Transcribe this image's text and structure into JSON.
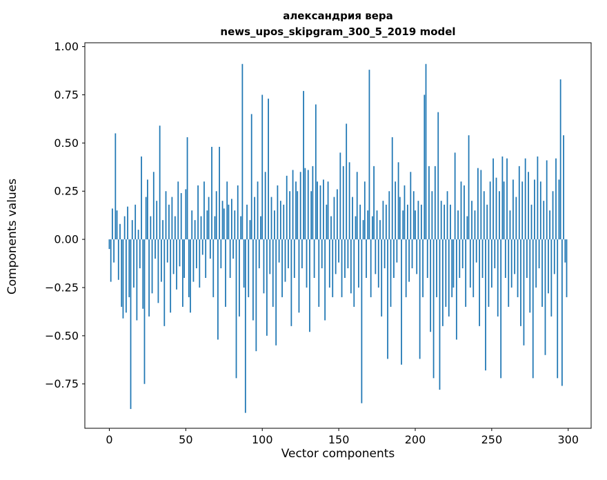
{
  "figure": {
    "background": "#ffffff",
    "title_line1": "александрия вера",
    "title_line2": "news_upos_skipgram_300_5_2019 model"
  },
  "chart_data": {
    "type": "bar",
    "title": "александрия вера\nnews_upos_skipgram_300_5_2019 model",
    "xlabel": "Vector components",
    "ylabel": "Components values",
    "n_components": 300,
    "bar_color": "#1f77b4",
    "bar_width": 0.8,
    "xlim": [
      -16,
      315
    ],
    "ylim": [
      -0.98,
      1.02
    ],
    "x_ticks": [
      0,
      50,
      100,
      150,
      200,
      250,
      300
    ],
    "y_ticks": [
      1.0,
      0.75,
      0.5,
      0.25,
      0.0,
      -0.25,
      -0.5,
      -0.75
    ],
    "grid": false,
    "legend": "none",
    "values": [
      -0.05,
      -0.22,
      0.16,
      -0.12,
      0.55,
      0.15,
      -0.21,
      0.08,
      -0.35,
      -0.41,
      0.12,
      -0.38,
      0.17,
      -0.3,
      -0.88,
      0.1,
      -0.25,
      0.18,
      -0.42,
      0.05,
      -0.15,
      0.43,
      -0.36,
      -0.75,
      0.22,
      0.31,
      -0.4,
      0.12,
      -0.28,
      0.35,
      -0.1,
      0.2,
      -0.33,
      0.59,
      -0.22,
      0.1,
      -0.45,
      0.25,
      -0.12,
      0.18,
      -0.38,
      0.22,
      -0.18,
      0.12,
      -0.26,
      0.3,
      -0.14,
      0.24,
      -0.35,
      -0.2,
      0.26,
      0.53,
      -0.3,
      -0.38,
      0.15,
      -0.22,
      0.1,
      -0.15,
      0.28,
      -0.25,
      0.12,
      -0.08,
      0.3,
      -0.2,
      0.15,
      0.22,
      -0.1,
      0.48,
      -0.3,
      0.12,
      0.25,
      -0.52,
      0.48,
      -0.15,
      0.2,
      0.16,
      -0.35,
      0.3,
      0.18,
      -0.2,
      0.21,
      -0.1,
      0.15,
      -0.72,
      0.28,
      -0.4,
      0.12,
      0.91,
      -0.25,
      -0.9,
      0.18,
      -0.3,
      0.1,
      0.65,
      -0.42,
      0.22,
      -0.58,
      0.3,
      -0.15,
      0.12,
      0.75,
      -0.28,
      0.35,
      -0.5,
      0.73,
      -0.18,
      0.22,
      -0.35,
      0.15,
      -0.55,
      0.28,
      -0.12,
      0.2,
      -0.3,
      0.18,
      -0.22,
      0.33,
      -0.15,
      0.25,
      -0.45,
      0.36,
      -0.2,
      0.3,
      0.25,
      -0.38,
      0.35,
      -0.15,
      0.77,
      0.37,
      -0.25,
      0.36,
      -0.48,
      0.25,
      0.38,
      -0.2,
      0.7,
      0.3,
      -0.35,
      0.28,
      -0.15,
      0.31,
      -0.42,
      0.18,
      0.3,
      -0.25,
      0.12,
      -0.3,
      0.22,
      -0.18,
      0.26,
      -0.12,
      0.45,
      -0.3,
      0.38,
      -0.2,
      0.6,
      -0.15,
      0.4,
      -0.28,
      0.22,
      -0.35,
      0.12,
      0.35,
      -0.25,
      0.18,
      -0.85,
      0.1,
      0.3,
      -0.2,
      0.15,
      0.88,
      -0.3,
      0.12,
      0.38,
      -0.18,
      0.15,
      -0.25,
      0.1,
      -0.4,
      0.2,
      -0.15,
      0.18,
      -0.62,
      0.25,
      -0.35,
      0.53,
      -0.2,
      0.3,
      -0.12,
      0.4,
      0.22,
      -0.65,
      0.15,
      0.28,
      -0.3,
      0.18,
      -0.22,
      0.35,
      -0.15,
      0.25,
      0.15,
      -0.18,
      0.2,
      -0.62,
      0.18,
      -0.3,
      0.75,
      0.91,
      -0.2,
      0.38,
      -0.48,
      0.25,
      -0.72,
      0.38,
      -0.3,
      0.66,
      -0.78,
      0.2,
      -0.45,
      0.18,
      -0.35,
      0.25,
      -0.4,
      0.18,
      -0.3,
      -0.25,
      0.45,
      -0.52,
      0.15,
      -0.2,
      0.3,
      -0.15,
      0.28,
      -0.35,
      0.12,
      0.54,
      -0.25,
      0.2,
      -0.3,
      0.15,
      -0.12,
      0.37,
      -0.45,
      0.36,
      -0.2,
      0.25,
      -0.68,
      0.18,
      -0.35,
      0.3,
      -0.25,
      0.42,
      -0.15,
      0.32,
      -0.4,
      0.25,
      -0.72,
      0.43,
      0.3,
      -0.2,
      0.42,
      -0.35,
      0.15,
      -0.25,
      0.31,
      -0.18,
      0.22,
      -0.3,
      0.38,
      -0.45,
      0.3,
      -0.55,
      0.42,
      -0.2,
      0.35,
      -0.38,
      0.18,
      -0.72,
      0.31,
      -0.25,
      0.43,
      -0.15,
      0.3,
      -0.35,
      0.2,
      -0.6,
      0.41,
      -0.28,
      0.15,
      -0.4,
      0.25,
      -0.18,
      0.42,
      -0.72,
      0.31,
      0.83,
      -0.76,
      0.54,
      -0.12,
      -0.3
    ]
  },
  "axes": {
    "x_label": "Vector components",
    "y_label": "Components values"
  }
}
